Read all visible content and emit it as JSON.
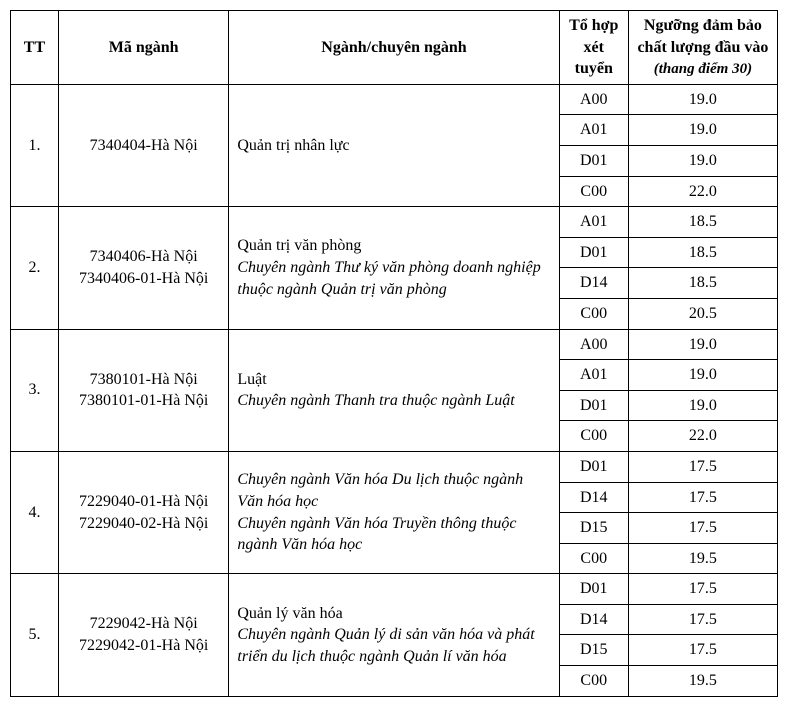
{
  "columns": {
    "tt": "TT",
    "code": "Mã ngành",
    "name": "Ngành/chuyên ngành",
    "combo": "Tổ hợp xét tuyển",
    "threshold_line1": "Ngưỡng đảm bảo chất lượng đầu vào",
    "threshold_line2": "(thang điểm 30)"
  },
  "rows": [
    {
      "tt": "1.",
      "code_lines": [
        "7340404-Hà Nội"
      ],
      "name_plain": "Quản trị nhân lực",
      "name_italic": "",
      "sub": [
        {
          "combo": "A00",
          "score": "19.0"
        },
        {
          "combo": "A01",
          "score": "19.0"
        },
        {
          "combo": "D01",
          "score": "19.0"
        },
        {
          "combo": "C00",
          "score": "22.0"
        }
      ]
    },
    {
      "tt": "2.",
      "code_lines": [
        "7340406-Hà Nội",
        "7340406-01-Hà Nội"
      ],
      "name_plain": "Quản trị văn phòng",
      "name_italic": "Chuyên ngành Thư ký văn phòng doanh nghiệp thuộc ngành Quản trị văn phòng",
      "sub": [
        {
          "combo": "A01",
          "score": "18.5"
        },
        {
          "combo": "D01",
          "score": "18.5"
        },
        {
          "combo": "D14",
          "score": "18.5"
        },
        {
          "combo": "C00",
          "score": "20.5"
        }
      ]
    },
    {
      "tt": "3.",
      "code_lines": [
        "7380101-Hà Nội",
        "7380101-01-Hà Nội"
      ],
      "name_plain": "Luật",
      "name_italic": "Chuyên ngành Thanh tra thuộc ngành Luật",
      "sub": [
        {
          "combo": "A00",
          "score": "19.0"
        },
        {
          "combo": "A01",
          "score": "19.0"
        },
        {
          "combo": "D01",
          "score": "19.0"
        },
        {
          "combo": "C00",
          "score": "22.0"
        }
      ]
    },
    {
      "tt": "4.",
      "code_lines": [
        "7229040-01-Hà Nội",
        "7229040-02-Hà Nội"
      ],
      "name_plain": "",
      "name_italic": "Chuyên ngành Văn hóa Du lịch thuộc ngành Văn hóa học\nChuyên ngành Văn hóa Truyền thông thuộc ngành Văn hóa học",
      "sub": [
        {
          "combo": "D01",
          "score": "17.5"
        },
        {
          "combo": "D14",
          "score": "17.5"
        },
        {
          "combo": "D15",
          "score": "17.5"
        },
        {
          "combo": "C00",
          "score": "19.5"
        }
      ]
    },
    {
      "tt": "5.",
      "code_lines": [
        "7229042-Hà Nội",
        "7229042-01-Hà Nội"
      ],
      "name_plain": "Quản lý văn hóa",
      "name_italic": "Chuyên ngành Quản lý di sản văn hóa và phát triển du lịch thuộc ngành Quản lí văn hóa",
      "sub": [
        {
          "combo": "D01",
          "score": "17.5"
        },
        {
          "combo": "D14",
          "score": "17.5"
        },
        {
          "combo": "D15",
          "score": "17.5"
        },
        {
          "combo": "C00",
          "score": "19.5"
        }
      ]
    }
  ]
}
